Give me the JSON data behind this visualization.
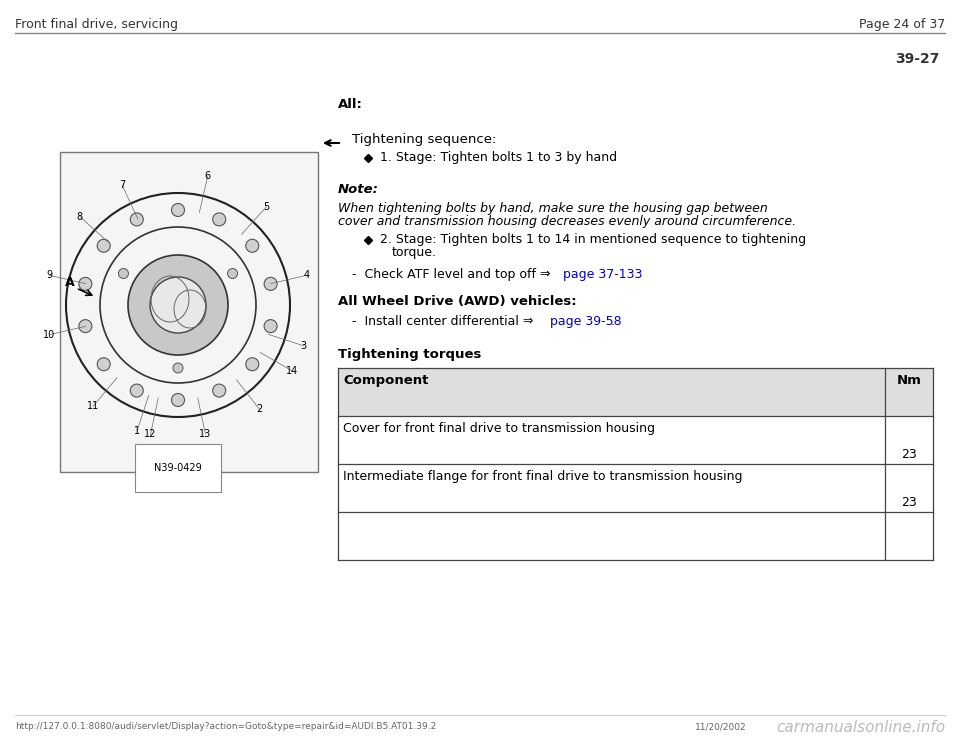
{
  "bg_color": "#ffffff",
  "header_left": "Front final drive, servicing",
  "header_right": "Page 24 of 37",
  "section_number": "39-27",
  "all_label": "All:",
  "tightening_sequence_label": "Tightening sequence:",
  "stage1_text": "1. Stage: Tighten bolts 1 to 3 by hand",
  "note_label": "Note:",
  "note_line1": "When tightening bolts by hand, make sure the housing gap between",
  "note_line2": "cover and transmission housing decreases evenly around circumference.",
  "stage2_line1": "2. Stage: Tighten bolts 1 to 14 in mentioned sequence to tightening",
  "stage2_line2": "torque.",
  "check_atf_prefix": "-  Check ATF level and top off ⇒ ",
  "check_atf_link": "page 37-133",
  "check_atf_suffix": " .",
  "awd_label": "All Wheel Drive (AWD) vehicles:",
  "awd_prefix": "-  Install center differential ⇒ ",
  "awd_link": "page 39-58",
  "awd_suffix": " .",
  "tightening_torques_label": "Tightening torques",
  "table_col1_header": "Component",
  "table_col2_header": "Nm",
  "table_row1_col1": "Cover for front final drive to transmission housing",
  "table_row1_col2": "23",
  "table_row2_col1": "Intermediate flange for front final drive to transmission housing",
  "table_row2_col2": "23",
  "footer_url": "http://127.0.0.1:8080/audi/servlet/Display?action=Goto&type=repair&id=AUDI.B5.AT01.39.2",
  "footer_date": "11/20/2002",
  "footer_watermark": "carmanualsonline.info",
  "link_color": "#0000cc",
  "diagram_label": "N39-0429"
}
